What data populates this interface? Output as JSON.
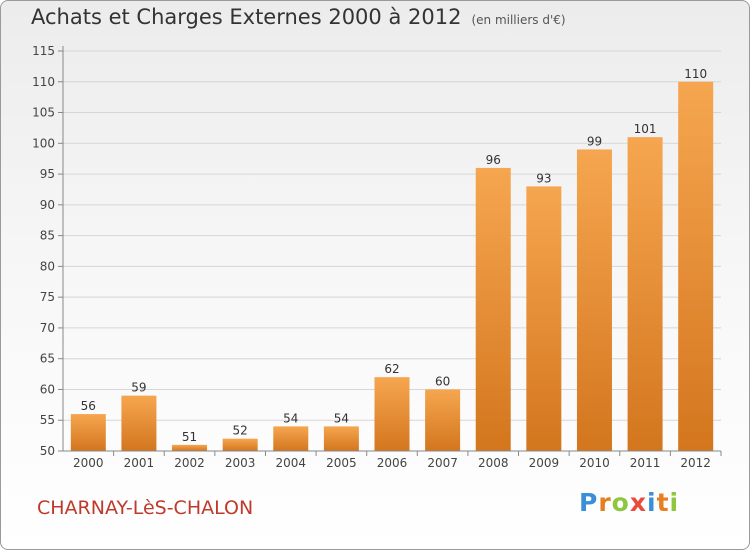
{
  "header": {
    "title": "Achats et Charges Externes 2000 à 2012",
    "subtitle": "(en milliers d'€)"
  },
  "footer": {
    "place": "CHARNAY-LèS-CHALON",
    "logo_letters": [
      "P",
      "r",
      "o",
      "x",
      "i",
      "t",
      "i"
    ]
  },
  "colors": {
    "bar_light": "#f6a650",
    "bar_dark": "#d3761e",
    "place_text": "#c0392b",
    "logo": [
      "#3a8fd8",
      "#e67e22",
      "#8dc63f",
      "#e74c3c",
      "#3a8fd8",
      "#e67e22",
      "#8dc63f"
    ]
  },
  "chart_data": {
    "type": "bar",
    "title": "Achats et Charges Externes 2000 à 2012",
    "subtitle": "(en milliers d'€)",
    "categories": [
      "2000",
      "2001",
      "2002",
      "2003",
      "2004",
      "2005",
      "2006",
      "2007",
      "2008",
      "2009",
      "2010",
      "2011",
      "2012"
    ],
    "values": [
      56,
      59,
      51,
      52,
      54,
      54,
      62,
      60,
      96,
      93,
      99,
      101,
      110
    ],
    "yticks": [
      50,
      55,
      60,
      65,
      70,
      75,
      80,
      85,
      90,
      95,
      100,
      105,
      110,
      115
    ],
    "ylim": [
      50,
      115
    ],
    "grid": true,
    "data_labels": true
  }
}
